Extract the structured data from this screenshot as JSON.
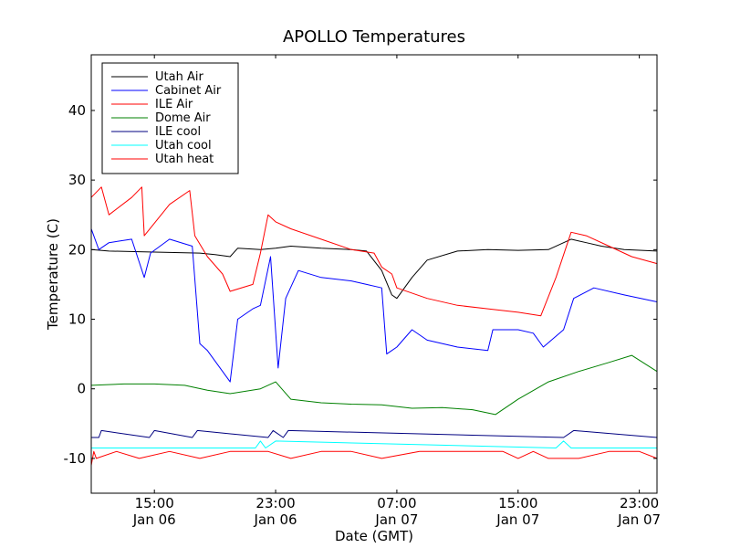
{
  "chart_data": {
    "type": "line",
    "title": "APOLLO Temperatures",
    "xlabel": "Date (GMT)",
    "ylabel": "Temperature (C)",
    "xlim": [
      "2007-01-06T10:50",
      "2007-01-08T00:10"
    ],
    "ylim": [
      -15,
      48
    ],
    "grid": false,
    "legend_position": "top-left",
    "y_ticks": [
      {
        "value": 40,
        "label": "40"
      },
      {
        "value": 30,
        "label": "30"
      },
      {
        "value": 20,
        "label": "20"
      },
      {
        "value": 10,
        "label": "10"
      },
      {
        "value": 0,
        "label": "0"
      },
      {
        "value": -10,
        "label": "-10"
      }
    ],
    "x_ticks": [
      {
        "value": "2007-01-06T15:00",
        "time": "15:00",
        "date": "Jan 06"
      },
      {
        "value": "2007-01-06T23:00",
        "time": "23:00",
        "date": "Jan 06"
      },
      {
        "value": "2007-01-07T07:00",
        "time": "07:00",
        "date": "Jan 07"
      },
      {
        "value": "2007-01-07T15:00",
        "time": "15:00",
        "date": "Jan 07"
      },
      {
        "value": "2007-01-07T23:00",
        "time": "23:00",
        "date": "Jan 07"
      }
    ],
    "series": [
      {
        "name": "Utah Air",
        "color": "#000000",
        "x": [
          "2007-01-06T10:50",
          "2007-01-06T12:00",
          "2007-01-06T14:00",
          "2007-01-06T16:00",
          "2007-01-06T18:00",
          "2007-01-06T19:00",
          "2007-01-06T20:00",
          "2007-01-06T20:30",
          "2007-01-06T22:00",
          "2007-01-06T23:00",
          "2007-01-07T00:00",
          "2007-01-07T02:00",
          "2007-01-07T04:00",
          "2007-01-07T05:00",
          "2007-01-07T06:00",
          "2007-01-07T06:40",
          "2007-01-07T07:00",
          "2007-01-07T08:00",
          "2007-01-07T09:00",
          "2007-01-07T11:00",
          "2007-01-07T13:00",
          "2007-01-07T15:00",
          "2007-01-07T17:00",
          "2007-01-07T18:30",
          "2007-01-07T19:30",
          "2007-01-07T20:30",
          "2007-01-07T22:00",
          "2007-01-08T00:10"
        ],
        "values": [
          20.0,
          19.8,
          19.7,
          19.6,
          19.5,
          19.3,
          19.0,
          20.2,
          20.0,
          20.2,
          20.5,
          20.2,
          20.0,
          19.8,
          17.0,
          13.5,
          13.0,
          16.0,
          18.5,
          19.8,
          20.0,
          19.9,
          20.0,
          21.5,
          21.0,
          20.5,
          20.0,
          19.8
        ]
      },
      {
        "name": "Cabinet Air",
        "color": "#0000ff",
        "x": [
          "2007-01-06T10:50",
          "2007-01-06T11:20",
          "2007-01-06T12:00",
          "2007-01-06T13:30",
          "2007-01-06T14:20",
          "2007-01-06T14:45",
          "2007-01-06T16:00",
          "2007-01-06T17:30",
          "2007-01-06T18:00",
          "2007-01-06T18:30",
          "2007-01-06T20:00",
          "2007-01-06T20:30",
          "2007-01-06T21:30",
          "2007-01-06T22:00",
          "2007-01-06T22:40",
          "2007-01-06T23:10",
          "2007-01-06T23:40",
          "2007-01-07T00:30",
          "2007-01-07T02:00",
          "2007-01-07T04:00",
          "2007-01-07T05:00",
          "2007-01-07T06:00",
          "2007-01-07T06:20",
          "2007-01-07T07:00",
          "2007-01-07T08:00",
          "2007-01-07T09:00",
          "2007-01-07T11:00",
          "2007-01-07T13:00",
          "2007-01-07T13:20",
          "2007-01-07T15:00",
          "2007-01-07T16:00",
          "2007-01-07T16:40",
          "2007-01-07T18:00",
          "2007-01-07T18:40",
          "2007-01-07T20:00",
          "2007-01-07T22:00",
          "2007-01-08T00:10"
        ],
        "values": [
          23.0,
          20.0,
          21.0,
          21.5,
          16.0,
          19.5,
          21.5,
          20.5,
          6.5,
          5.5,
          1.0,
          10.0,
          11.5,
          12.0,
          19.0,
          3.0,
          13.0,
          17.0,
          16.0,
          15.5,
          15.0,
          14.5,
          5.0,
          6.0,
          8.5,
          7.0,
          6.0,
          5.5,
          8.5,
          8.5,
          8.0,
          6.0,
          8.5,
          13.0,
          14.5,
          13.5,
          12.5
        ]
      },
      {
        "name": "ILE Air",
        "color": "#ff0000",
        "x": [
          "2007-01-06T10:50",
          "2007-01-06T11:30",
          "2007-01-06T12:00",
          "2007-01-06T13:30",
          "2007-01-06T14:10",
          "2007-01-06T14:20",
          "2007-01-06T16:00",
          "2007-01-06T17:20",
          "2007-01-06T17:40",
          "2007-01-06T18:30",
          "2007-01-06T19:30",
          "2007-01-06T20:00",
          "2007-01-06T21:30",
          "2007-01-06T22:00",
          "2007-01-06T22:30",
          "2007-01-06T23:00",
          "2007-01-07T00:00",
          "2007-01-07T02:00",
          "2007-01-07T04:00",
          "2007-01-07T05:30",
          "2007-01-07T06:00",
          "2007-01-07T06:40",
          "2007-01-07T07:00",
          "2007-01-07T09:00",
          "2007-01-07T11:00",
          "2007-01-07T13:00",
          "2007-01-07T15:00",
          "2007-01-07T16:30",
          "2007-01-07T17:30",
          "2007-01-07T18:30",
          "2007-01-07T19:30",
          "2007-01-07T21:00",
          "2007-01-07T22:30",
          "2007-01-08T00:10"
        ],
        "values": [
          27.5,
          29.0,
          25.0,
          27.5,
          29.0,
          22.0,
          26.5,
          28.5,
          22.0,
          19.0,
          16.5,
          14.0,
          15.0,
          19.5,
          25.0,
          24.0,
          23.0,
          21.5,
          20.0,
          19.5,
          17.5,
          16.5,
          14.5,
          13.0,
          12.0,
          11.5,
          11.0,
          10.5,
          16.0,
          22.5,
          22.0,
          20.5,
          19.0,
          18.0
        ]
      },
      {
        "name": "Dome Air",
        "color": "#008000",
        "x": [
          "2007-01-06T10:50",
          "2007-01-06T13:00",
          "2007-01-06T15:00",
          "2007-01-06T17:00",
          "2007-01-06T18:30",
          "2007-01-06T20:00",
          "2007-01-06T22:00",
          "2007-01-06T23:00",
          "2007-01-07T00:00",
          "2007-01-07T02:00",
          "2007-01-07T04:00",
          "2007-01-07T06:00",
          "2007-01-07T08:00",
          "2007-01-07T10:00",
          "2007-01-07T12:00",
          "2007-01-07T13:30",
          "2007-01-07T15:00",
          "2007-01-07T17:00",
          "2007-01-07T19:00",
          "2007-01-07T21:00",
          "2007-01-07T22:30",
          "2007-01-08T00:10"
        ],
        "values": [
          0.5,
          0.7,
          0.7,
          0.5,
          -0.2,
          -0.7,
          0.0,
          1.0,
          -1.5,
          -2.0,
          -2.2,
          -2.3,
          -2.8,
          -2.7,
          -3.0,
          -3.7,
          -1.5,
          1.0,
          2.5,
          3.8,
          4.8,
          2.5
        ]
      },
      {
        "name": "ILE cool",
        "color": "#000080",
        "x": [
          "2007-01-06T10:50",
          "2007-01-06T11:20",
          "2007-01-06T11:30",
          "2007-01-06T14:40",
          "2007-01-06T15:00",
          "2007-01-06T17:30",
          "2007-01-06T17:50",
          "2007-01-06T22:30",
          "2007-01-06T22:50",
          "2007-01-06T23:30",
          "2007-01-06T23:50",
          "2007-01-07T18:00",
          "2007-01-07T18:40",
          "2007-01-08T00:10"
        ],
        "values": [
          -7,
          -7,
          -6,
          -7,
          -6,
          -7,
          -6,
          -7,
          -6,
          -7,
          -6,
          -7,
          -6,
          -7
        ]
      },
      {
        "name": "Utah cool",
        "color": "#00ffff",
        "x": [
          "2007-01-06T10:50",
          "2007-01-06T21:40",
          "2007-01-06T22:00",
          "2007-01-06T22:20",
          "2007-01-06T23:00",
          "2007-01-07T17:30",
          "2007-01-07T18:00",
          "2007-01-07T18:30",
          "2007-01-08T00:10"
        ],
        "values": [
          -8.5,
          -8.5,
          -7.5,
          -8.5,
          -7.5,
          -8.5,
          -7.5,
          -8.5,
          -8.5
        ]
      },
      {
        "name": "Utah heat",
        "color": "#ff0000",
        "x": [
          "2007-01-06T10:50",
          "2007-01-06T11:00",
          "2007-01-06T11:10",
          "2007-01-06T12:30",
          "2007-01-06T14:00",
          "2007-01-06T16:00",
          "2007-01-06T18:00",
          "2007-01-06T20:00",
          "2007-01-06T22:30",
          "2007-01-07T00:00",
          "2007-01-07T02:00",
          "2007-01-07T04:00",
          "2007-01-07T06:00",
          "2007-01-07T08:30",
          "2007-01-07T10:00",
          "2007-01-07T12:00",
          "2007-01-07T14:00",
          "2007-01-07T15:00",
          "2007-01-07T16:00",
          "2007-01-07T17:00",
          "2007-01-07T19:00",
          "2007-01-07T21:00",
          "2007-01-07T23:00",
          "2007-01-08T00:10"
        ],
        "values": [
          -11.0,
          -9.0,
          -10.0,
          -9.0,
          -10.0,
          -9.0,
          -10.0,
          -9.0,
          -9.0,
          -10.0,
          -9.0,
          -9.0,
          -10.0,
          -9.0,
          -9.0,
          -9.0,
          -9.0,
          -10.0,
          -9.0,
          -10.0,
          -10.0,
          -9.0,
          -9.0,
          -10.0
        ]
      }
    ]
  }
}
